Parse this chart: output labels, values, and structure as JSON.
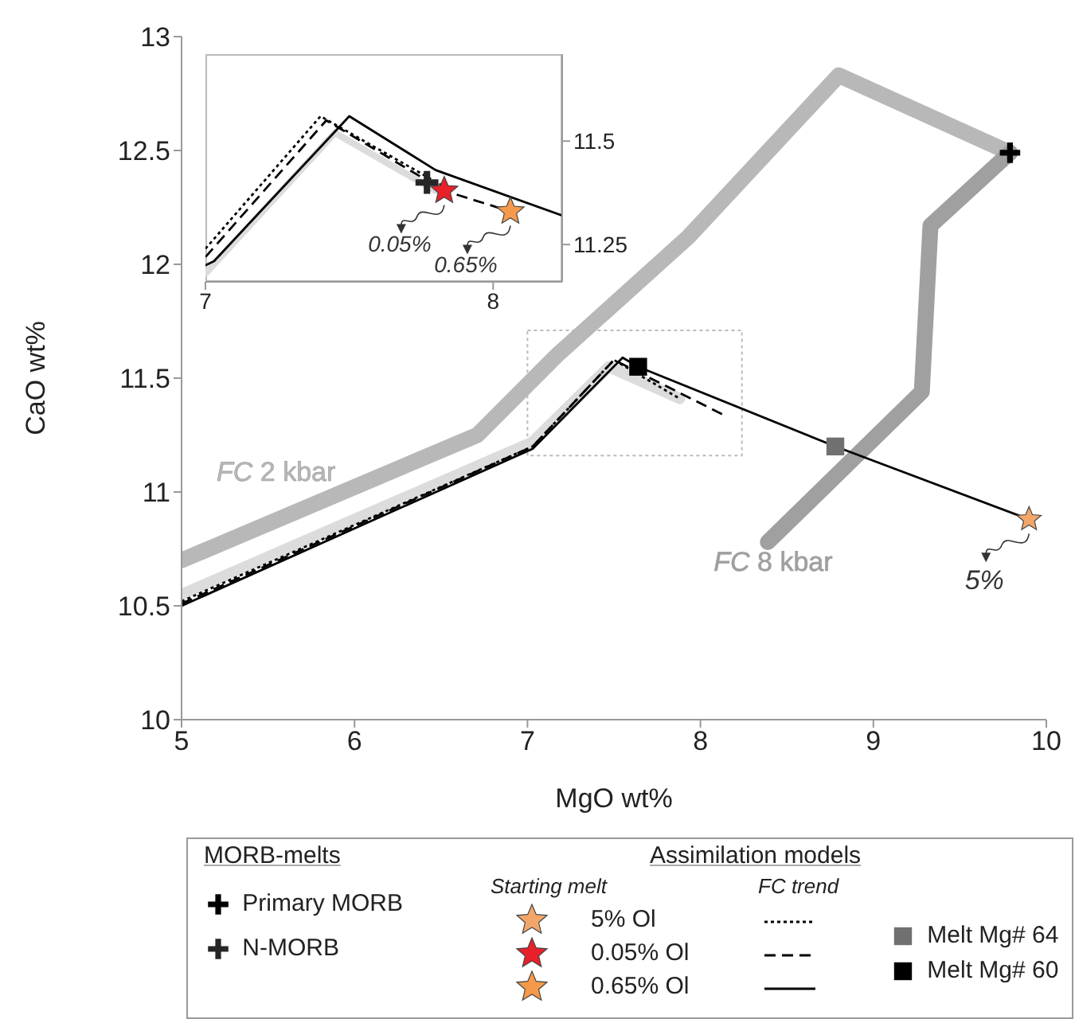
{
  "chart_data": [
    {
      "type": "line",
      "xlabel": "MgO wt%",
      "ylabel": "CaO wt%",
      "xlim": [
        5,
        10
      ],
      "xticks": [
        5,
        6,
        7,
        8,
        9,
        10
      ],
      "ylim": [
        10,
        13
      ],
      "yticks": [
        10,
        10.5,
        11,
        11.5,
        12,
        12.5,
        13
      ],
      "legend": "bottom",
      "annotations": [
        "MORB-melts",
        "Assimilation models",
        "Starting melt",
        "FC trend",
        {
          "text": "5%",
          "x": 9.9,
          "y": 10.88
        }
      ],
      "series": [
        {
          "name": "FC 2 kbar",
          "color": "#b8b8b8",
          "x": [
            5,
            6.71,
            7.17,
            7.93,
            8.8,
            9.79
          ],
          "values": [
            10.7,
            11.25,
            11.6,
            12.12,
            12.83,
            12.49
          ]
        },
        {
          "name": "FC 8 kbar",
          "color": "#a0a0a0",
          "x": [
            9.79,
            9.33,
            9.28,
            8.39
          ],
          "values": [
            12.49,
            12.17,
            11.44,
            10.78
          ]
        },
        {
          "color": "#dcdcdc",
          "x": [
            5,
            7.03,
            7.47,
            7.88
          ],
          "values": [
            10.55,
            11.22,
            11.55,
            11.41
          ]
        },
        {
          "color": "#000000",
          "line_style": "dotted",
          "x": [
            5,
            7.03,
            7.5,
            7.88
          ],
          "values": [
            10.52,
            11.2,
            11.58,
            11.41
          ]
        },
        {
          "color": "#000000",
          "line_style": "dashed",
          "x": [
            5,
            7.03,
            7.5,
            8.13
          ],
          "values": [
            10.51,
            11.2,
            11.58,
            11.34
          ]
        },
        {
          "color": "#000000",
          "line_style": "solid",
          "x": [
            5,
            7.03,
            7.55,
            7.64,
            8.78,
            9.9
          ],
          "values": [
            10.5,
            11.19,
            11.59,
            11.55,
            11.2,
            10.88
          ]
        },
        {
          "type": "scatter",
          "name": "Primary MORB",
          "marker": "cross",
          "color": "#000000",
          "x": [
            9.79
          ],
          "values": [
            12.49
          ]
        },
        {
          "type": "scatter",
          "name": "Melt Mg# 64",
          "marker": "square",
          "color": "#707070",
          "x": [
            8.78
          ],
          "values": [
            11.2
          ]
        },
        {
          "type": "scatter",
          "name": "Melt Mg# 60",
          "marker": "square",
          "color": "#000000",
          "x": [
            7.64
          ],
          "values": [
            11.55
          ]
        },
        {
          "type": "scatter",
          "name": "5% Ol",
          "marker": "star",
          "color": "#f2a66a",
          "x": [
            9.9
          ],
          "values": [
            10.88
          ]
        }
      ]
    },
    {
      "type": "line",
      "xlim": [
        7,
        8.24
      ],
      "xticks": [
        7,
        8
      ],
      "y2lim": [
        11.16,
        11.71
      ],
      "y2ticks": [
        11.25,
        11.5
      ],
      "legend": "bottom",
      "annotations": [
        "0.05%",
        "0.65%"
      ],
      "series": [
        {
          "color": "#dcdcdc",
          "axis": "y2",
          "x": [
            7,
            7.45,
            7.8
          ],
          "values": [
            11.18,
            11.52,
            11.38
          ]
        },
        {
          "color": "#000000",
          "axis": "y2",
          "line_style": "dotted",
          "x": [
            7,
            7.4,
            7.83
          ],
          "values": [
            11.24,
            11.56,
            11.39
          ]
        },
        {
          "color": "#000000",
          "axis": "y2",
          "line_style": "dashed",
          "x": [
            7,
            7.42,
            7.83,
            8.06
          ],
          "values": [
            11.22,
            11.55,
            11.38,
            11.33
          ]
        },
        {
          "color": "#000000",
          "axis": "y2",
          "line_style": "solid",
          "x": [
            7,
            7.03,
            7.5,
            7.8,
            8.24
          ],
          "values": [
            11.2,
            11.21,
            11.56,
            11.43,
            11.32
          ]
        },
        {
          "type": "scatter",
          "axis": "y2",
          "name": "0.05% Ol",
          "marker": "star",
          "color": "#e8202a",
          "x": [
            7.83
          ],
          "values": [
            11.38
          ]
        },
        {
          "type": "scatter",
          "axis": "y2",
          "name": "0.65% Ol",
          "marker": "star",
          "color": "#f59a4a",
          "x": [
            8.06
          ],
          "values": [
            11.33
          ]
        },
        {
          "type": "scatter",
          "axis": "y2",
          "name": "N-MORB",
          "marker": "cross",
          "color": "#262626",
          "x": [
            7.77
          ],
          "values": [
            11.4
          ]
        }
      ]
    }
  ]
}
